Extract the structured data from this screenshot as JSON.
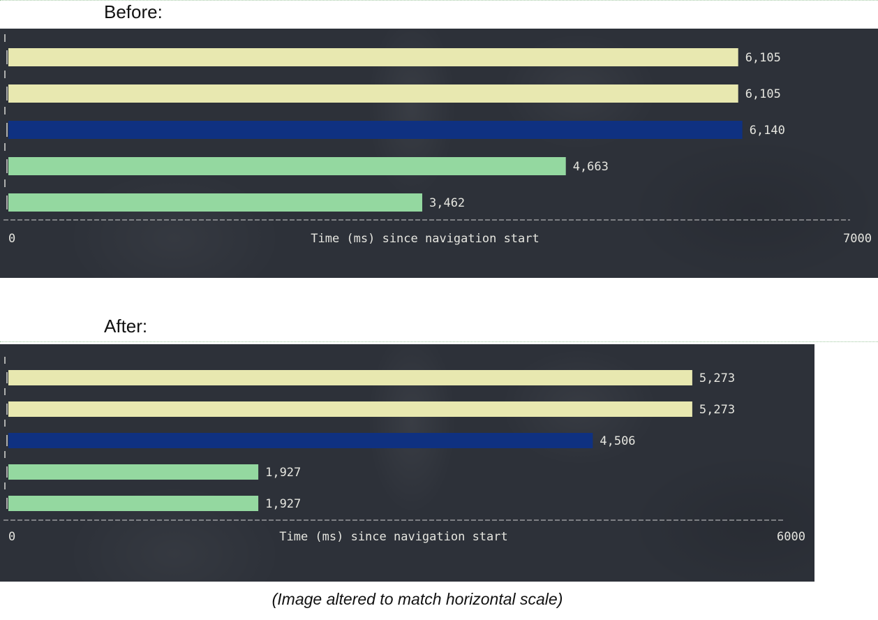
{
  "headings": {
    "before": "Before:",
    "after": "After:"
  },
  "caption": "(Image altered to match horizontal scale)",
  "colors": {
    "panel_background": "#2d3139",
    "bar_light_yellow": "#e8e8b0",
    "bar_dark_blue": "#0f3181",
    "bar_green": "#94d8a0",
    "axis_text": "#e6e6e0",
    "axis_dash": "#cfcfcf"
  },
  "chart_data": [
    {
      "type": "bar",
      "orientation": "horizontal",
      "title": "Before:",
      "xlabel": "Time (ms) since navigation start",
      "xlim": [
        0,
        7000
      ],
      "tick_labels": [
        "0",
        "7000"
      ],
      "values": [
        6105,
        6105,
        6140,
        4663,
        3462
      ],
      "value_labels": [
        "6,105",
        "6,105",
        "6,140",
        "4,663",
        "3,462"
      ],
      "bar_colors": [
        "#e8e8b0",
        "#e8e8b0",
        "#0f3181",
        "#94d8a0",
        "#94d8a0"
      ],
      "grid": false
    },
    {
      "type": "bar",
      "orientation": "horizontal",
      "title": "After:",
      "xlabel": "Time (ms) since navigation start",
      "xlim": [
        0,
        6000
      ],
      "tick_labels": [
        "0",
        "6000"
      ],
      "values": [
        5273,
        5273,
        4506,
        1927,
        1927
      ],
      "value_labels": [
        "5,273",
        "5,273",
        "4,506",
        "1,927",
        "1,927"
      ],
      "bar_colors": [
        "#e8e8b0",
        "#e8e8b0",
        "#0f3181",
        "#94d8a0",
        "#94d8a0"
      ],
      "grid": false
    }
  ]
}
